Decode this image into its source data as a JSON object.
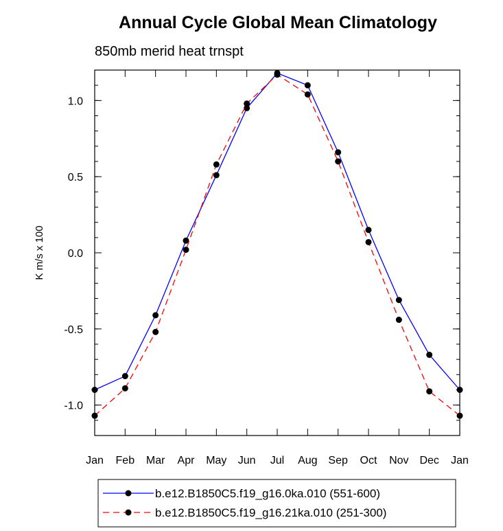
{
  "chart_data": {
    "type": "line",
    "title": "Annual Cycle Global Mean Climatology",
    "subtitle": "850mb merid heat trnspt",
    "ylabel": "K m/s x 100",
    "xlabel": "",
    "categories": [
      "Jan",
      "Feb",
      "Mar",
      "Apr",
      "May",
      "Jun",
      "Jul",
      "Aug",
      "Sep",
      "Oct",
      "Nov",
      "Dec",
      "Jan"
    ],
    "ylim": [
      -1.2,
      1.2
    ],
    "yticks": [
      -1.0,
      -0.5,
      0.0,
      0.5,
      1.0
    ],
    "ytick_labels": [
      "-1.0",
      "-0.5",
      "0.0",
      "0.5",
      "1.0"
    ],
    "grid": false,
    "legend_position": "bottom-center",
    "series": [
      {
        "name": "b.e12.B1850C5.f19_g16.0ka.010 (551-600)",
        "color": "#0000ff",
        "style": "solid",
        "marker": "filled-circle",
        "values": [
          -0.9,
          -0.81,
          -0.41,
          0.08,
          0.51,
          0.95,
          1.18,
          1.1,
          0.66,
          0.15,
          -0.31,
          -0.67,
          -0.9
        ]
      },
      {
        "name": "b.e12.B1850C5.f19_g16.21ka.010 (251-300)",
        "color": "#ff0000",
        "style": "dashed",
        "marker": "filled-circle",
        "values": [
          -1.07,
          -0.89,
          -0.52,
          0.02,
          0.58,
          0.98,
          1.17,
          1.04,
          0.6,
          0.07,
          -0.44,
          -0.91,
          -1.07
        ]
      }
    ]
  }
}
